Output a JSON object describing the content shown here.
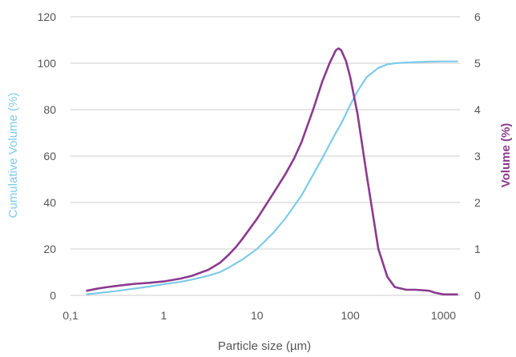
{
  "chart_data": {
    "type": "line",
    "title": "",
    "x_scale": "log",
    "xlabel": "Particle size (µm)",
    "xlim": [
      0.1,
      1500
    ],
    "x_ticks": [
      {
        "value": 0.1,
        "label": "0,1"
      },
      {
        "value": 1,
        "label": "1"
      },
      {
        "value": 10,
        "label": "10"
      },
      {
        "value": 100,
        "label": "100"
      },
      {
        "value": 1000,
        "label": "1000"
      }
    ],
    "ylabel_left": "Cumulative Volume (%)",
    "ylim_left": [
      0,
      120
    ],
    "y_ticks_left": [
      "0",
      "20",
      "40",
      "60",
      "80",
      "100",
      "120"
    ],
    "ylabel_right": "Volume (%)",
    "ylim_right": [
      0,
      6
    ],
    "y_ticks_right": [
      "0",
      "1",
      "2",
      "3",
      "4",
      "5",
      "6"
    ],
    "grid": "horizontal",
    "legend": "none",
    "colors": {
      "cumulative": "#7ccbe9",
      "volume": "#8b3a8f",
      "grid": "#cccccc",
      "tick_text": "#555555",
      "xlabel_text": "#555555"
    },
    "series": [
      {
        "key": "cumulative",
        "axis": "left",
        "x": [
          0.15,
          0.2,
          0.3,
          0.5,
          0.7,
          1,
          1.5,
          2,
          3,
          4,
          5,
          7,
          10,
          15,
          20,
          30,
          40,
          50,
          60,
          70,
          80,
          100,
          120,
          150,
          200,
          250,
          300,
          400,
          500,
          700,
          1000,
          1400
        ],
        "y": [
          0.5,
          1,
          1.8,
          3,
          3.8,
          4.8,
          5.8,
          6.8,
          8.5,
          10,
          12,
          15.5,
          20,
          27,
          33,
          43,
          52,
          59,
          65,
          70,
          74,
          82,
          88,
          94,
          98,
          99.5,
          100,
          100.3,
          100.5,
          100.7,
          100.8,
          100.8
        ]
      },
      {
        "key": "volume",
        "axis": "right",
        "x": [
          0.15,
          0.2,
          0.25,
          0.3,
          0.4,
          0.5,
          0.7,
          1,
          1.5,
          2,
          3,
          4,
          5,
          6,
          7,
          10,
          15,
          20,
          25,
          30,
          40,
          50,
          60,
          70,
          75,
          80,
          90,
          100,
          120,
          150,
          200,
          250,
          300,
          400,
          500,
          700,
          800,
          1000,
          1400
        ],
        "y": [
          0.1,
          0.15,
          0.18,
          0.2,
          0.23,
          0.25,
          0.27,
          0.3,
          0.36,
          0.42,
          0.55,
          0.7,
          0.88,
          1.05,
          1.22,
          1.65,
          2.2,
          2.6,
          2.95,
          3.3,
          4.0,
          4.6,
          5.0,
          5.28,
          5.32,
          5.28,
          5.05,
          4.7,
          3.9,
          2.6,
          1.0,
          0.4,
          0.18,
          0.12,
          0.12,
          0.1,
          0.06,
          0.02,
          0.02
        ]
      }
    ]
  }
}
